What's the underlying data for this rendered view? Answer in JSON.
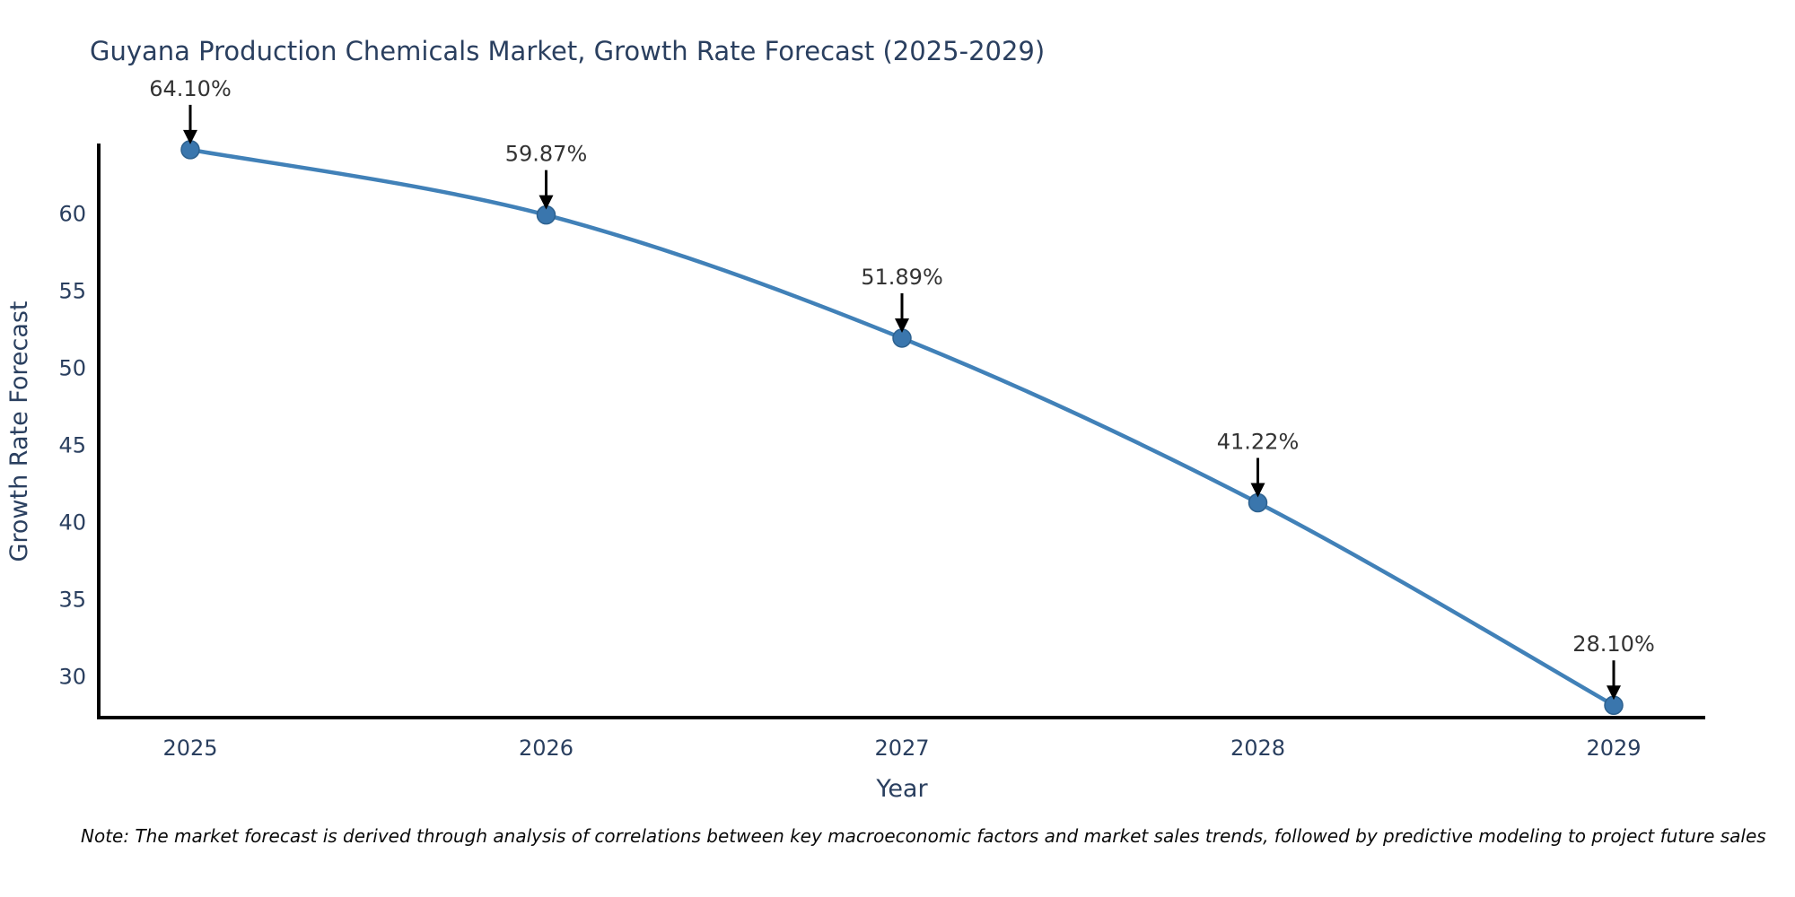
{
  "header": {
    "title": "Guyana Production Chemicals Market, Growth Rate Forecast (2025-2029)"
  },
  "footnote": {
    "text": "Note: The market forecast is derived through analysis of correlations between key macroeconomic factors and market sales trends, followed by predictive modeling to project future sales"
  },
  "chart_data": {
    "type": "line",
    "title": "Guyana Production Chemicals Market, Growth Rate Forecast (2025-2029)",
    "categories": [
      "2025",
      "2026",
      "2027",
      "2028",
      "2029"
    ],
    "series": [
      {
        "name": "Growth Rate Forecast",
        "values": [
          64.1,
          59.87,
          51.89,
          41.22,
          28.1
        ]
      }
    ],
    "point_labels": [
      "64.10%",
      "59.87%",
      "51.89%",
      "41.22%",
      "28.10%"
    ],
    "xlabel": "Year",
    "ylabel": "Growth Rate Forecast",
    "yticks": [
      30,
      35,
      40,
      45,
      50,
      55,
      60
    ],
    "ylim": [
      27.3,
      64.5
    ],
    "grid": false,
    "legend_position": "none",
    "line_shape": "spline",
    "annotation_arrows": true,
    "colors": {
      "line": "#4181b8",
      "marker": "#3a76ad",
      "marker_edge": "#2d618f",
      "axis": "#000000",
      "tick_text": "#2a3f5f",
      "annotation_text": "#333333",
      "arrow": "#000000",
      "background": "#ffffff"
    }
  }
}
